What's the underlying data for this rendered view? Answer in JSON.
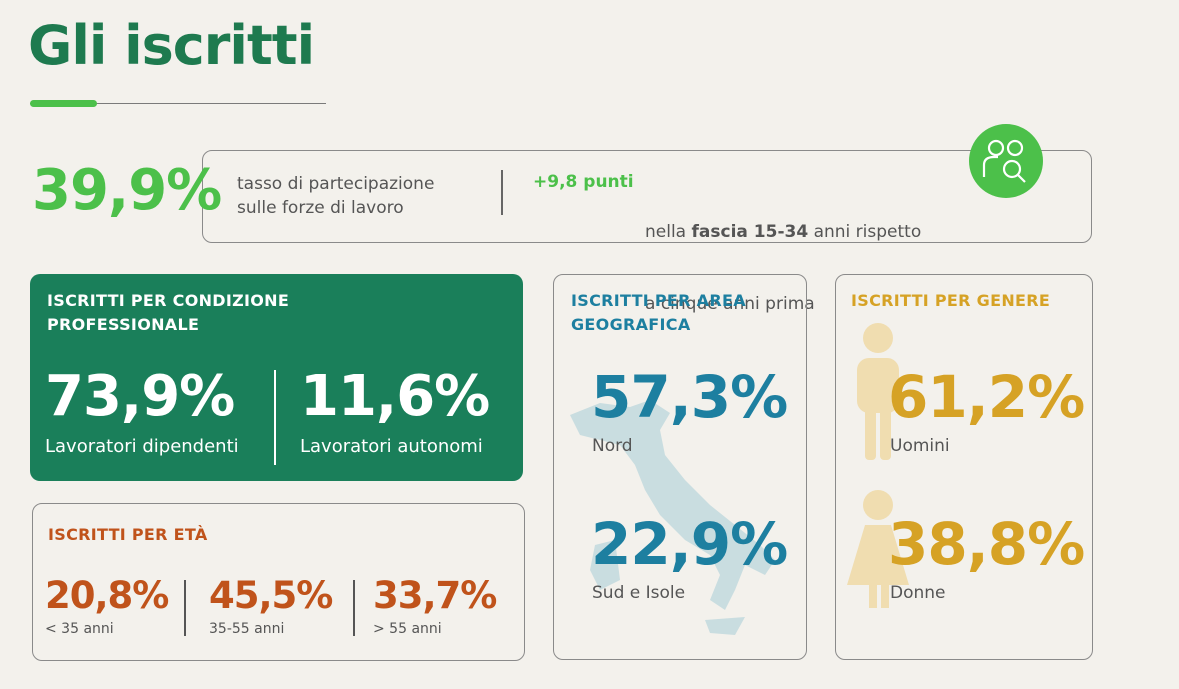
{
  "header": {
    "title": "Gli iscritti"
  },
  "participation": {
    "value": "39,9%",
    "label_lines": [
      "tasso di partecipazione",
      "sulle forze di lavoro"
    ],
    "highlight": "+9,8 punti",
    "note_parts": [
      "nella ",
      "fascia 15-34",
      " anni rispetto"
    ],
    "note_line2": "a cinque anni prima"
  },
  "condition": {
    "title_lines": [
      "ISCRITTI PER CONDIZIONE",
      "PROFESSIONALE"
    ],
    "items": [
      {
        "value": "73,9%",
        "label": "Lavoratori dipendenti"
      },
      {
        "value": "11,6%",
        "label": "Lavoratori autonomi"
      }
    ]
  },
  "age": {
    "title": "ISCRITTI PER ETÀ",
    "items": [
      {
        "value": "20,8%",
        "label": "< 35 anni"
      },
      {
        "value": "45,5%",
        "label": "35-55 anni"
      },
      {
        "value": "33,7%",
        "label": "> 55 anni"
      }
    ]
  },
  "area": {
    "title_lines": [
      "ISCRITTI PER AREA",
      "GEOGRAFICA"
    ],
    "items": [
      {
        "value": "57,3%",
        "label": "Nord"
      },
      {
        "value": "22,9%",
        "label": "Sud e Isole"
      }
    ]
  },
  "gender": {
    "title": "ISCRITTI PER GENERE",
    "items": [
      {
        "value": "61,2%",
        "label": "Uomini"
      },
      {
        "value": "38,8%",
        "label": "Donne"
      }
    ]
  }
}
